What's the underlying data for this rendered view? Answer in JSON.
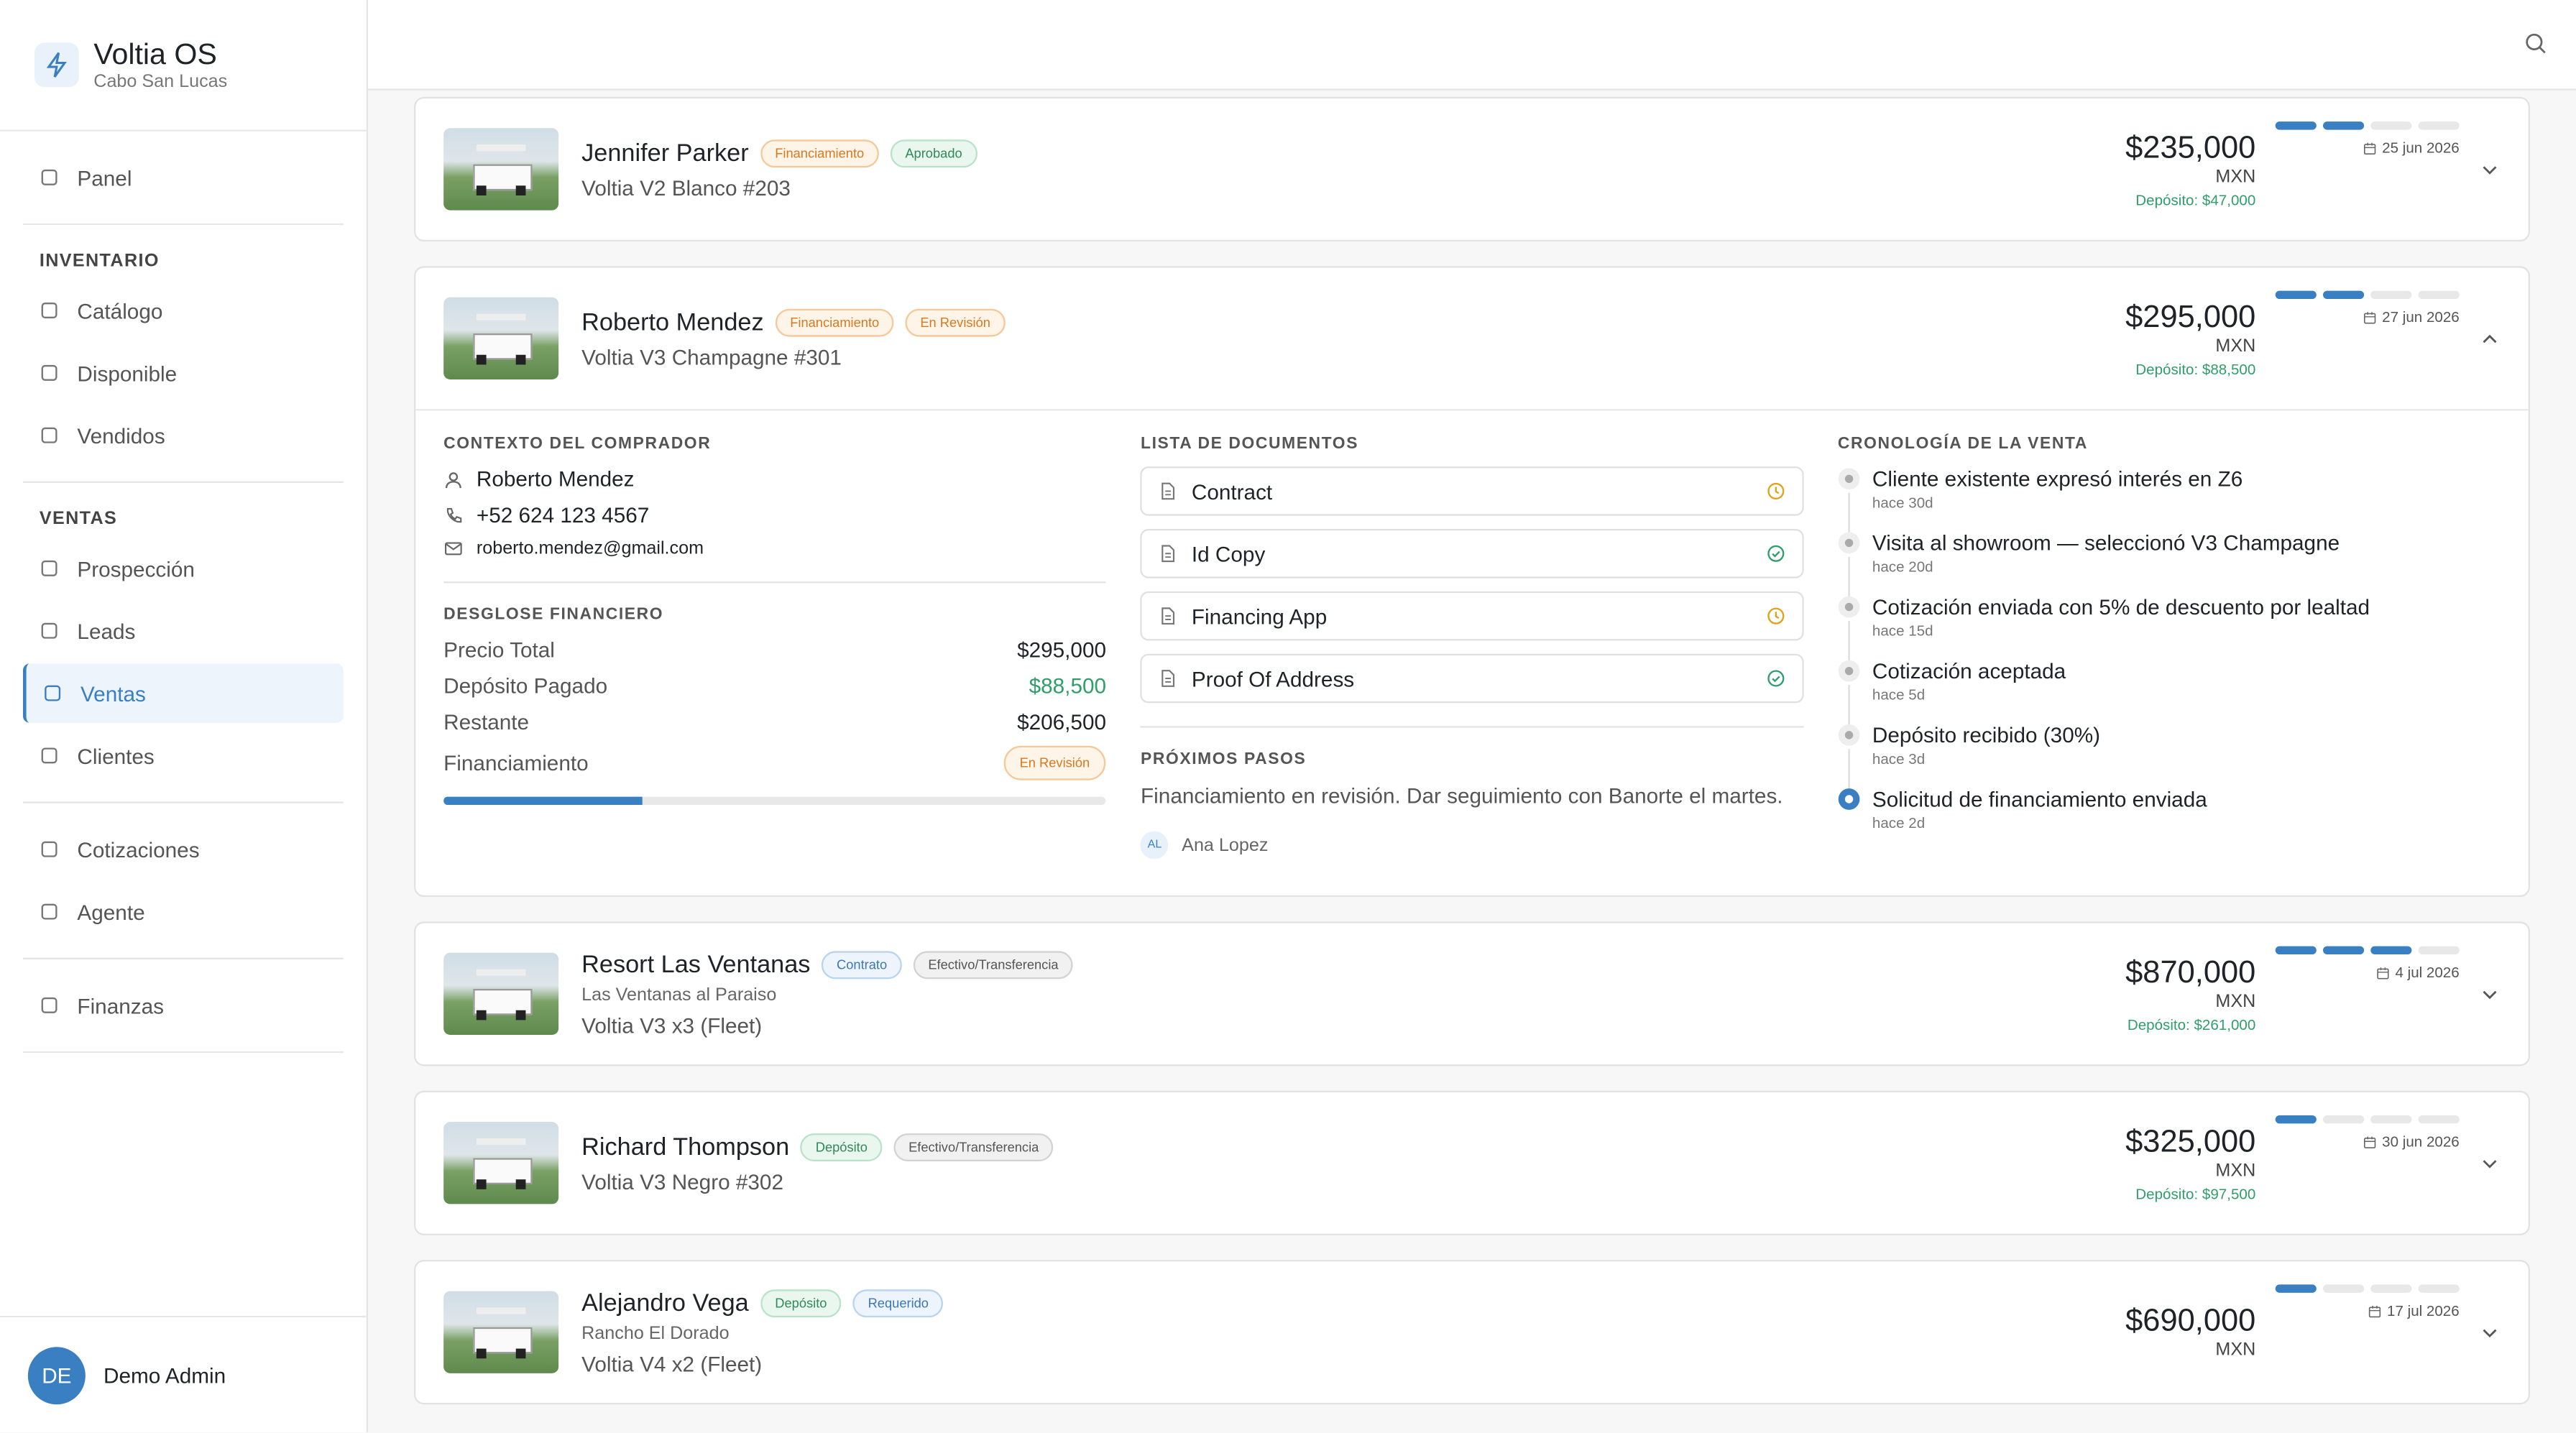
{
  "app": {
    "name": "Voltia OS",
    "location": "Cabo San Lucas"
  },
  "nav": [
    {
      "items": [
        {
          "label": "Panel"
        }
      ]
    },
    {
      "heading": "INVENTARIO",
      "items": [
        {
          "label": "Catálogo"
        },
        {
          "label": "Disponible"
        },
        {
          "label": "Vendidos"
        }
      ]
    },
    {
      "heading": "VENTAS",
      "items": [
        {
          "label": "Prospección"
        },
        {
          "label": "Leads"
        },
        {
          "label": "Ventas",
          "active": true
        },
        {
          "label": "Clientes"
        }
      ]
    },
    {
      "items": [
        {
          "label": "Cotizaciones"
        },
        {
          "label": "Agente"
        }
      ]
    },
    {
      "items": [
        {
          "label": "Finanzas"
        }
      ]
    }
  ],
  "user": {
    "initials": "DE",
    "name": "Demo Admin"
  },
  "sales": [
    {
      "name": "Jennifer Parker",
      "tags": [
        {
          "text": "Financiamiento",
          "tone": "orange"
        },
        {
          "text": "Aprobado",
          "tone": "green"
        }
      ],
      "vehicle": "Voltia V2 Blanco #203",
      "price": "$235,000",
      "currency": "MXN",
      "deposit": "Depósito: $47,000",
      "progress": 2,
      "steps": 4,
      "date": "25 jun 2026"
    },
    {
      "name": "Roberto Mendez",
      "tags": [
        {
          "text": "Financiamiento",
          "tone": "orange"
        },
        {
          "text": "En Revisión",
          "tone": "orange"
        }
      ],
      "vehicle": "Voltia V3 Champagne #301",
      "price": "$295,000",
      "currency": "MXN",
      "deposit": "Depósito: $88,500",
      "progress": 2,
      "steps": 4,
      "date": "27 jun 2026",
      "details": {
        "buyer": {
          "title": "CONTEXTO DEL COMPRADOR",
          "name": "Roberto Mendez",
          "phone": "+52 624 123 4567",
          "email": "roberto.mendez@gmail.com"
        },
        "finance": {
          "title": "DESGLOSE FINANCIERO",
          "rows": [
            {
              "label": "Precio Total",
              "value": "$295,000"
            },
            {
              "label": "Depósito Pagado",
              "value": "$88,500",
              "tone": "green"
            },
            {
              "label": "Restante",
              "value": "$206,500"
            }
          ],
          "financing_label": "Financiamiento",
          "financing_status": "En Revisión",
          "paid_percent": 30
        },
        "documents": {
          "title": "LISTA DE DOCUMENTOS",
          "items": [
            {
              "name": "Contract",
              "status": "pending"
            },
            {
              "name": "Id Copy",
              "status": "done"
            },
            {
              "name": "Financing App",
              "status": "pending"
            },
            {
              "name": "Proof Of Address",
              "status": "done"
            }
          ]
        },
        "next": {
          "title": "PRÓXIMOS PASOS",
          "text": "Financiamiento en revisión. Dar seguimiento con Banorte el martes.",
          "initials": "AL",
          "assignee": "Ana Lopez"
        },
        "timeline": {
          "title": "CRONOLOGÍA DE LA VENTA",
          "events": [
            {
              "text": "Cliente existente expresó interés en Z6",
              "time": "hace 30d"
            },
            {
              "text": "Visita al showroom — seleccionó V3 Champagne",
              "time": "hace 20d"
            },
            {
              "text": "Cotización enviada con 5% de descuento por lealtad",
              "time": "hace 15d"
            },
            {
              "text": "Cotización aceptada",
              "time": "hace 5d"
            },
            {
              "text": "Depósito recibido (30%)",
              "time": "hace 3d"
            },
            {
              "text": "Solicitud de financiamiento enviada",
              "time": "hace 2d",
              "active": true
            }
          ]
        }
      }
    },
    {
      "name": "Resort Las Ventanas",
      "tags": [
        {
          "text": "Contrato",
          "tone": "blue"
        },
        {
          "text": "Efectivo/Transferencia",
          "tone": "gray"
        }
      ],
      "subtitle": "Las Ventanas al Paraiso",
      "vehicle": "Voltia V3 x3 (Fleet)",
      "price": "$870,000",
      "currency": "MXN",
      "deposit": "Depósito: $261,000",
      "progress": 3,
      "steps": 4,
      "date": "4 jul 2026"
    },
    {
      "name": "Richard Thompson",
      "tags": [
        {
          "text": "Depósito",
          "tone": "green"
        },
        {
          "text": "Efectivo/Transferencia",
          "tone": "gray"
        }
      ],
      "vehicle": "Voltia V3 Negro #302",
      "price": "$325,000",
      "currency": "MXN",
      "deposit": "Depósito: $97,500",
      "progress": 1,
      "steps": 4,
      "date": "30 jun 2026"
    },
    {
      "name": "Alejandro Vega",
      "tags": [
        {
          "text": "Depósito",
          "tone": "green"
        },
        {
          "text": "Requerido",
          "tone": "blue"
        }
      ],
      "subtitle": "Rancho El Dorado",
      "vehicle": "Voltia V4 x2 (Fleet)",
      "price": "$690,000",
      "currency": "MXN",
      "progress": 1,
      "steps": 4,
      "date": "17 jul 2026"
    }
  ]
}
